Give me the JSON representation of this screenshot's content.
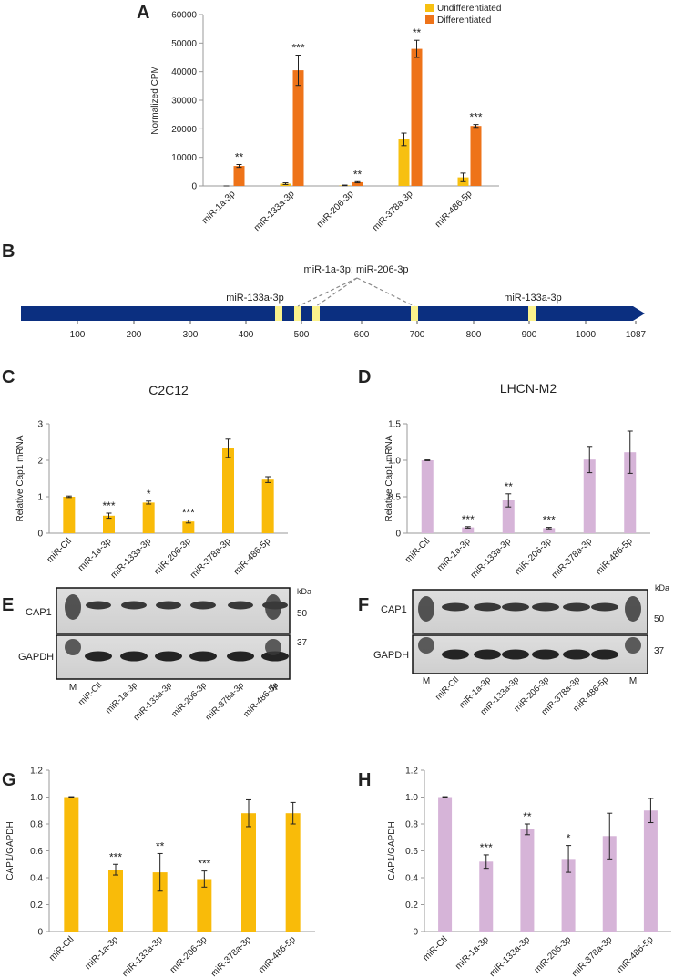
{
  "colors": {
    "undiff": "#f7c010",
    "diff": "#ee7319",
    "c2c12": "#f9bb09",
    "lhcn": "#d6b4d8",
    "navy": "#0b2f80",
    "site": "#fbf28c",
    "axis": "#9a9a9a"
  },
  "panel_labels": {
    "a": "A",
    "b": "B",
    "c": "C",
    "d": "D",
    "e": "E",
    "f": "F",
    "g": "G",
    "h": "H"
  },
  "chart_data": [
    {
      "id": "A",
      "type": "bar",
      "title": "",
      "ylabel": "Normalized CPM",
      "xlabel": "",
      "categories": [
        "miR-1a-3p",
        "miR-133a-3p",
        "miR-206-3p",
        "miR-378a-3p",
        "miR-486-5p"
      ],
      "ylim": [
        0,
        60000
      ],
      "yticks": [
        0,
        10000,
        20000,
        30000,
        40000,
        50000,
        60000
      ],
      "series": [
        {
          "name": "Undifferentiated",
          "values": [
            0,
            800,
            200,
            16300,
            3000
          ],
          "errors": [
            0,
            300,
            100,
            2200,
            1500
          ]
        },
        {
          "name": "Differentiated",
          "values": [
            7000,
            40500,
            1300,
            48000,
            21000
          ],
          "errors": [
            500,
            5300,
            200,
            3000,
            500
          ]
        }
      ],
      "annotations": [
        "**",
        "***",
        "**",
        "**",
        "***"
      ],
      "legend": [
        "Undifferentiated",
        "Differentiated"
      ],
      "legend_position": "top-right"
    },
    {
      "id": "C",
      "type": "bar",
      "title": "C2C12",
      "ylabel": "Relative  Cap1 mRNA",
      "categories": [
        "miR-Ctl",
        "miR-1a-3p",
        "miR-133a-3p",
        "miR-206-3p",
        "miR-378a-3p",
        "miR-486-5p"
      ],
      "ylim": [
        0,
        3
      ],
      "yticks": [
        0,
        1,
        2,
        3
      ],
      "values": [
        1.0,
        0.48,
        0.84,
        0.32,
        2.33,
        1.47
      ],
      "errors": [
        0.02,
        0.07,
        0.04,
        0.04,
        0.25,
        0.08
      ],
      "annotations": [
        "",
        "***",
        "*",
        "***",
        "",
        ""
      ]
    },
    {
      "id": "D",
      "type": "bar",
      "title": "LHCN-M2",
      "ylabel": "Relative  Cap1 mRNA",
      "categories": [
        "miR-Ctl",
        "miR-1a-3p",
        "miR-133a-3p",
        "miR-206-3p",
        "miR-378a-3p",
        "miR-486-5p"
      ],
      "ylim": [
        0,
        1.5
      ],
      "yticks": [
        "0",
        "0.5",
        "1.0",
        "1.5"
      ],
      "values": [
        1.0,
        0.08,
        0.45,
        0.07,
        1.01,
        1.11
      ],
      "errors": [
        0.005,
        0.01,
        0.09,
        0.01,
        0.18,
        0.29
      ],
      "annotations": [
        "",
        "***",
        "**",
        "***",
        "",
        ""
      ]
    },
    {
      "id": "G",
      "type": "bar",
      "title": "",
      "ylabel": "CAP1/GAPDH",
      "categories": [
        "miR-Ctl",
        "miR-1a-3p",
        "miR-133a-3p",
        "miR-206-3p",
        "miR-378a-3p",
        "miR-486-5p"
      ],
      "ylim": [
        0,
        1.2
      ],
      "yticks": [
        "0",
        "0.2",
        "0.4",
        "0.6",
        "0.8",
        "1.0",
        "1.2"
      ],
      "values": [
        1.0,
        0.46,
        0.44,
        0.39,
        0.88,
        0.88
      ],
      "errors": [
        0.003,
        0.04,
        0.14,
        0.06,
        0.1,
        0.08
      ],
      "annotations": [
        "",
        "***",
        "**",
        "***",
        "",
        ""
      ]
    },
    {
      "id": "H",
      "type": "bar",
      "title": "",
      "ylabel": "CAP1/GAPDH",
      "categories": [
        "miR-Ctl",
        "miR-1a-3p",
        "miR-133a-3p",
        "miR-206-3p",
        "miR-378a-3p",
        "miR-486-5p"
      ],
      "ylim": [
        0,
        1.2
      ],
      "yticks": [
        "0",
        "0.2",
        "0.4",
        "0.6",
        "0.8",
        "1.0",
        "1.2"
      ],
      "values": [
        1.0,
        0.52,
        0.76,
        0.54,
        0.71,
        0.9
      ],
      "errors": [
        0.003,
        0.05,
        0.04,
        0.1,
        0.17,
        0.09
      ],
      "annotations": [
        "",
        "***",
        "**",
        "*",
        "",
        ""
      ]
    }
  ],
  "gene_map": {
    "ticks": [
      "100",
      "200",
      "300",
      "400",
      "500",
      "600",
      "700",
      "800",
      "900",
      "1000",
      "1087"
    ],
    "label_133_left": "miR-133a-3p",
    "label_1a_206": "miR-1a-3p; miR-206-3p",
    "label_133_right": "miR-133a-3p"
  },
  "blot_e": {
    "cap1": "CAP1",
    "gapdh": "GAPDH",
    "kda": "kDa",
    "m50": "50",
    "m37": "37",
    "lanes": [
      "M",
      "miR-Ctl",
      "miR-1a-3p",
      "miR-133a-3p",
      "miR-206-3p",
      "miR-378a-3p",
      "miR-486-5p",
      "M"
    ]
  },
  "blot_f": {
    "cap1": "CAP1",
    "gapdh": "GAPDH",
    "kda": "kDa",
    "m50": "50",
    "m37": "37",
    "lanes": [
      "M",
      "miR-Ctl",
      "miR-1a-3p",
      "miR-133a-3p",
      "miR-206-3p",
      "miR-378a-3p",
      "miR-486-5p",
      "M"
    ]
  }
}
